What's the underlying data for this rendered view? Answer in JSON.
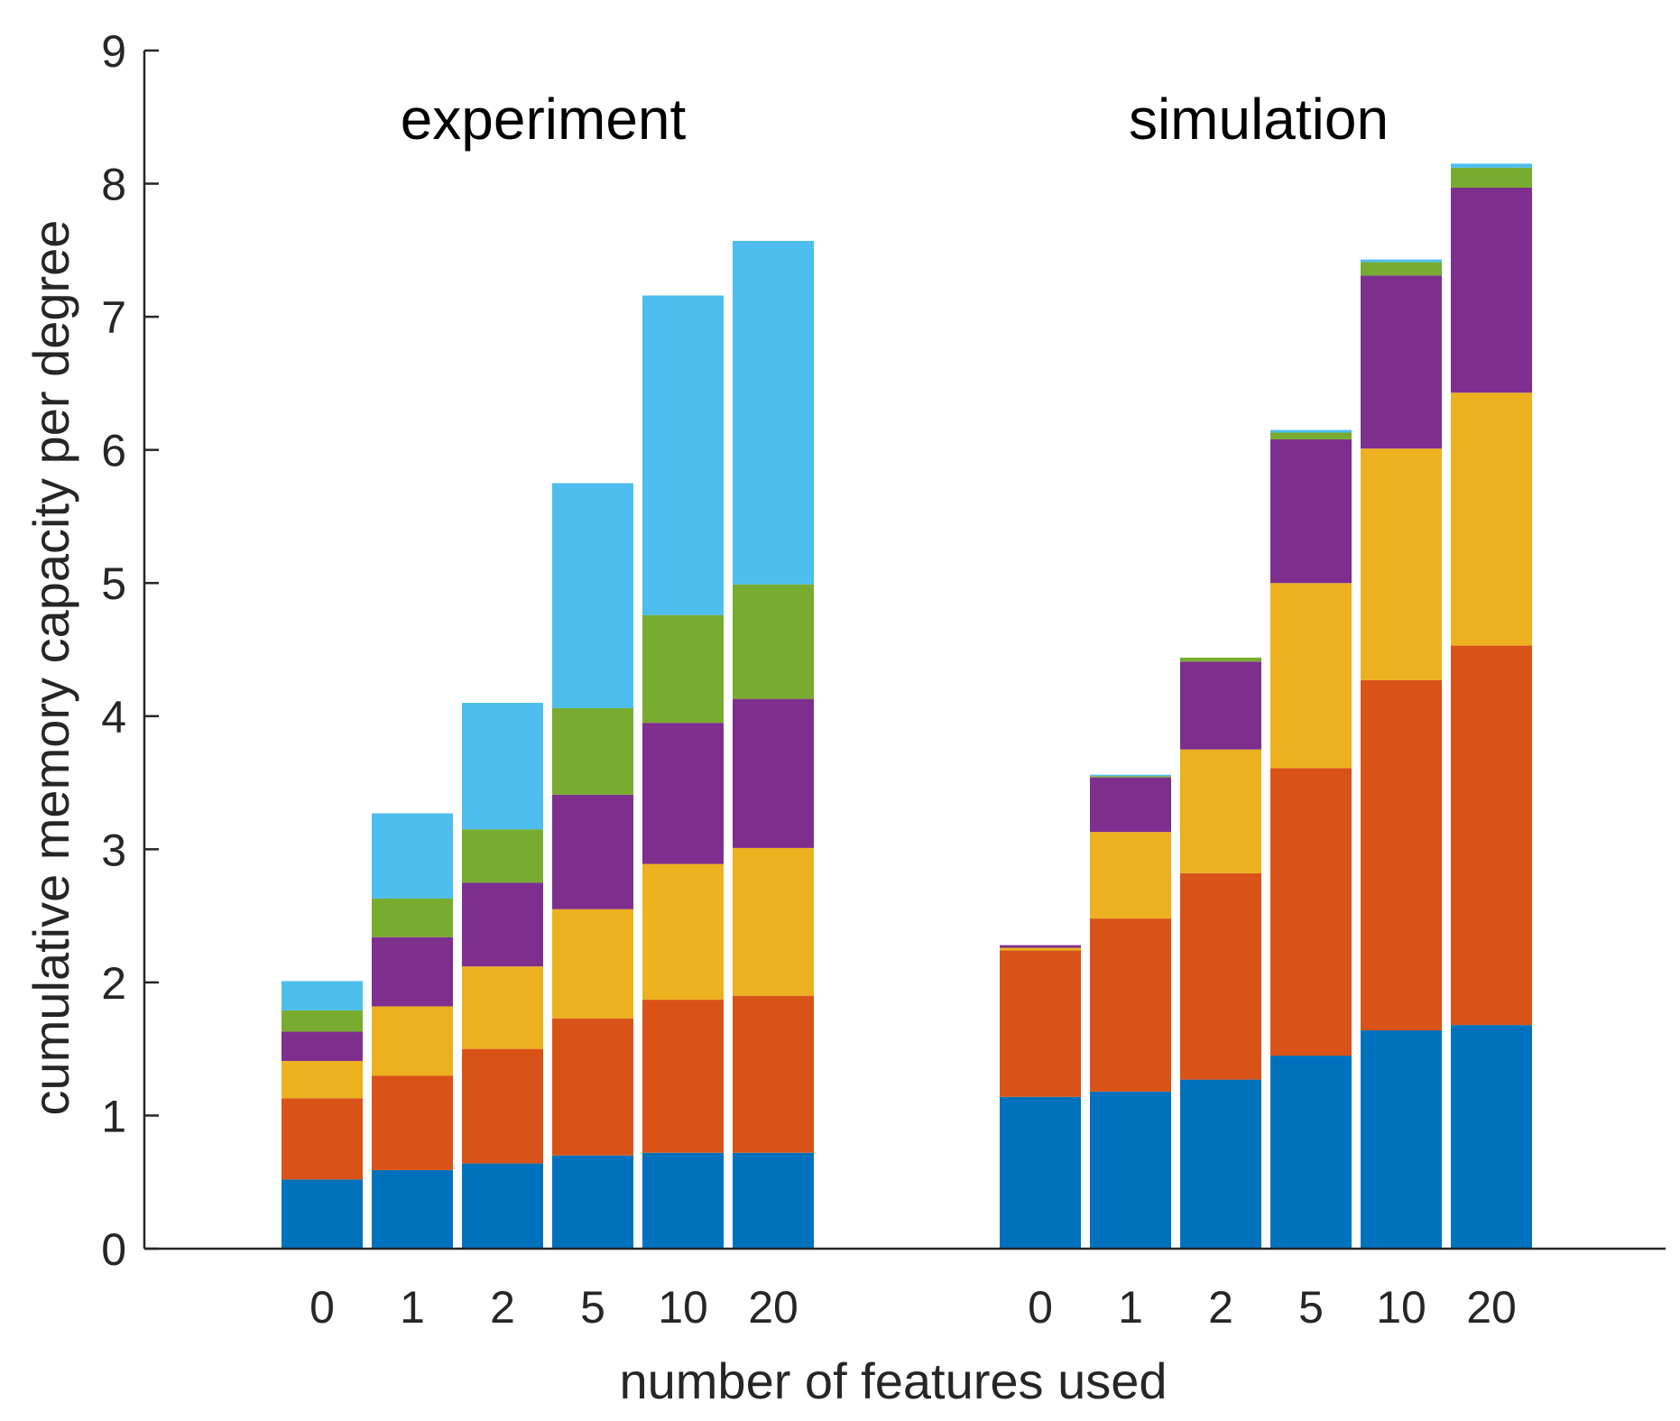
{
  "chart_data": {
    "type": "bar",
    "stacked": true,
    "title": "",
    "xlabel": "number of features used",
    "ylabel": "cumulative memory capacity per degree",
    "ylim": [
      0,
      9
    ],
    "yticks": [
      0,
      1,
      2,
      3,
      4,
      5,
      6,
      7,
      8,
      9
    ],
    "legend": "none",
    "grid": false,
    "series_colors": [
      "#0072BD",
      "#D95319",
      "#EDB120",
      "#7E2F8E",
      "#77AC30",
      "#4DBEEE"
    ],
    "groups": [
      {
        "label": "experiment",
        "categories": [
          "0",
          "1",
          "2",
          "5",
          "10",
          "20"
        ],
        "cumulative": [
          [
            0.52,
            1.13,
            1.41,
            1.63,
            1.79,
            2.01
          ],
          [
            0.59,
            1.3,
            1.82,
            2.34,
            2.63,
            3.27
          ],
          [
            0.64,
            1.5,
            2.12,
            2.75,
            3.15,
            4.1
          ],
          [
            0.7,
            1.73,
            2.55,
            3.41,
            4.06,
            5.75
          ],
          [
            0.72,
            1.87,
            2.89,
            3.95,
            4.76,
            7.16
          ],
          [
            0.72,
            1.9,
            3.01,
            4.13,
            4.99,
            7.57
          ]
        ]
      },
      {
        "label": "simulation",
        "categories": [
          "0",
          "1",
          "2",
          "5",
          "10",
          "20"
        ],
        "cumulative": [
          [
            1.14,
            2.24,
            2.26,
            2.28,
            2.28,
            2.28
          ],
          [
            1.18,
            2.48,
            3.13,
            3.54,
            3.55,
            3.56
          ],
          [
            1.27,
            2.82,
            3.75,
            4.41,
            4.44,
            4.44
          ],
          [
            1.45,
            3.61,
            5.0,
            6.08,
            6.13,
            6.15
          ],
          [
            1.64,
            4.27,
            6.01,
            7.31,
            7.41,
            7.43
          ],
          [
            1.68,
            4.53,
            6.43,
            7.97,
            8.12,
            8.15
          ]
        ]
      }
    ]
  }
}
